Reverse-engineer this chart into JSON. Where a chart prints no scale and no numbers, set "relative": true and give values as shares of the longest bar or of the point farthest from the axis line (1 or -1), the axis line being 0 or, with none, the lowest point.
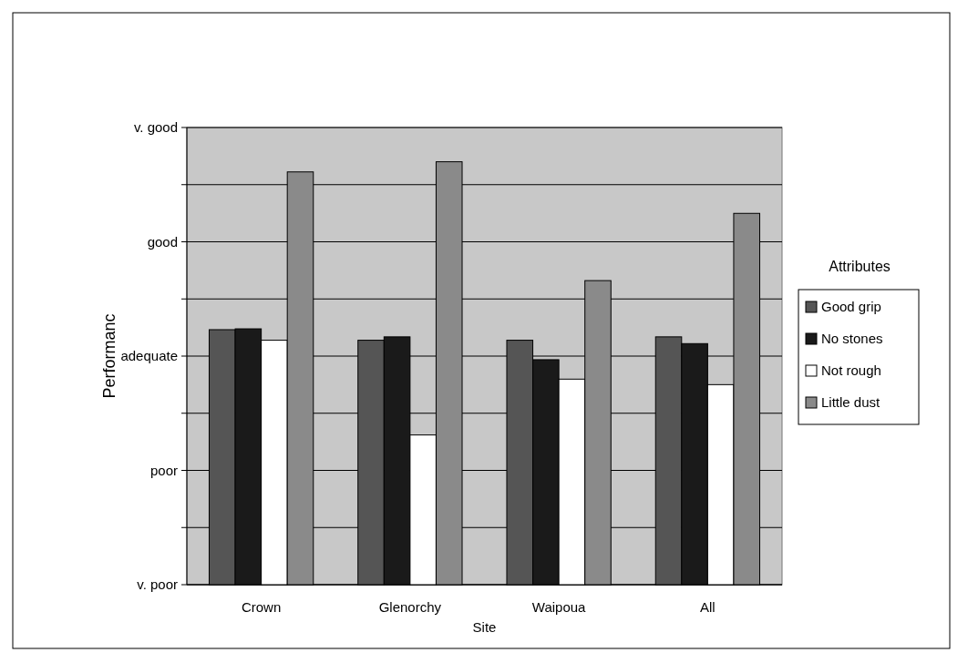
{
  "chart_data": {
    "type": "bar",
    "xlabel": "Site",
    "ylabel": "Performanc",
    "legend_title": "Attributes",
    "categories": [
      "Crown",
      "Glenorchy",
      "Waipoua",
      "All"
    ],
    "series": [
      {
        "name": "Good grip",
        "color": "#555555",
        "values": [
          0.603,
          0.578,
          0.578,
          0.586
        ]
      },
      {
        "name": "No stones",
        "color": "#1a1a1a",
        "values": [
          0.605,
          0.586,
          0.532,
          0.57
        ]
      },
      {
        "name": "Not rough",
        "color": "#ffffff",
        "values": [
          0.578,
          0.354,
          0.486,
          0.473
        ]
      },
      {
        "name": "Little dust",
        "color": "#8a8a8a",
        "values": [
          0.976,
          1,
          0.719,
          0.878
        ]
      }
    ],
    "relative": true,
    "annotations": [
      "v. poor",
      "poor",
      "adequate",
      "good",
      "v. good"
    ],
    "grid": "y",
    "legend": "right"
  }
}
